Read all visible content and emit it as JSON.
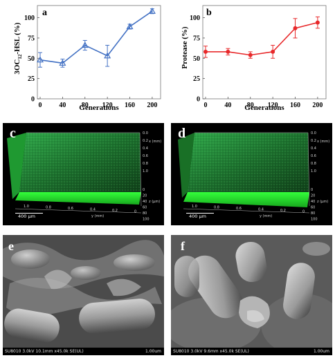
{
  "panels": {
    "a": {
      "letter": "a"
    },
    "b": {
      "letter": "b"
    },
    "c": {
      "letter": "c",
      "scale_bar": "400 μm"
    },
    "d": {
      "letter": "d",
      "scale_bar": "400 μm"
    },
    "e": {
      "letter": "e",
      "sem_info": "SU8010 3.0kV 10.1mm x45.0k SE(UL)",
      "sem_scale": "1.00um"
    },
    "f": {
      "letter": "f",
      "sem_info": "SU8010 3.0kV 9.6mm x45.0k SE(UL)",
      "sem_scale": "1.00um"
    }
  },
  "confocal_axes": {
    "x_label": "x (mm)",
    "y_label": "y (mm)",
    "z_label": "z (μm)",
    "x_ticks": [
      "0.0",
      "0.2",
      "0.4",
      "0.6",
      "0.8",
      "1.0"
    ],
    "y_ticks": [
      "1.0",
      "0.8",
      "0.6",
      "0.4",
      "0.2",
      "0"
    ],
    "z_ticks": [
      "0",
      "20",
      "40",
      "60",
      "80",
      "100"
    ]
  },
  "chart_data": [
    {
      "type": "line",
      "panel": "a",
      "xlabel": "Generations",
      "ylabel": "3OC12-HSL (%)",
      "x": [
        0,
        40,
        80,
        120,
        160,
        200
      ],
      "y": [
        48,
        44,
        66,
        53,
        89,
        108
      ],
      "err": [
        9,
        5,
        6,
        13,
        3,
        3
      ],
      "xlim": [
        0,
        210
      ],
      "ylim": [
        0,
        115
      ],
      "xticks": [
        0,
        40,
        80,
        120,
        160,
        200
      ],
      "yticks": [
        0,
        25,
        50,
        75,
        100
      ],
      "color": "#4472c4",
      "marker": "triangle"
    },
    {
      "type": "line",
      "panel": "b",
      "xlabel": "Generations",
      "ylabel": "Protease (%)",
      "x": [
        0,
        40,
        80,
        120,
        160,
        200
      ],
      "y": [
        58,
        58,
        54,
        58,
        87,
        94
      ],
      "err": [
        7,
        4,
        4,
        8,
        12,
        7
      ],
      "xlim": [
        0,
        210
      ],
      "ylim": [
        0,
        115
      ],
      "xticks": [
        0,
        40,
        80,
        120,
        160,
        200
      ],
      "yticks": [
        0,
        25,
        50,
        75,
        100
      ],
      "color": "#e8282a",
      "marker": "circle"
    }
  ]
}
